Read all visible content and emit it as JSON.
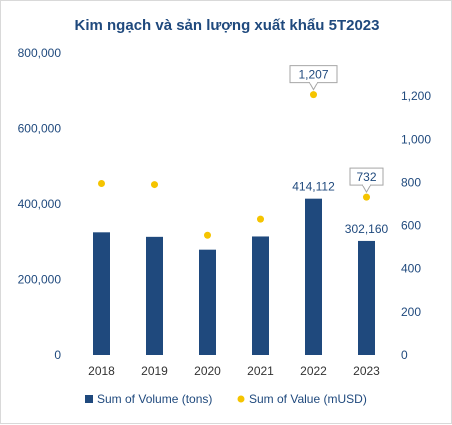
{
  "chart_data": {
    "type": "bar",
    "title": "Kim ngạch và sản lượng xuất khẩu 5T2023",
    "categories": [
      "2018",
      "2019",
      "2020",
      "2021",
      "2022",
      "2023"
    ],
    "series": [
      {
        "name": "Sum of Volume (tons)",
        "type": "bar",
        "axis": "left",
        "color": "#1f497d",
        "values": [
          325000,
          313000,
          279000,
          314000,
          414112,
          302160
        ],
        "labels": [
          "",
          "",
          "",
          "",
          "414,112",
          "302,160"
        ]
      },
      {
        "name": "Sum of Value (mUSD)",
        "type": "scatter",
        "axis": "right",
        "color": "#f5c400",
        "values": [
          795,
          790,
          555,
          630,
          1207,
          732
        ],
        "labels": [
          "",
          "",
          "",
          "",
          "1,207",
          "732"
        ]
      }
    ],
    "left_axis": {
      "min": 0,
      "max": 800000,
      "ticks": [
        0,
        200000,
        400000,
        600000,
        800000
      ],
      "tick_labels": [
        "0",
        "200,000",
        "400,000",
        "600,000",
        "800,000"
      ]
    },
    "right_axis": {
      "min": 0,
      "max": 1400,
      "ticks": [
        0,
        200,
        400,
        600,
        800,
        1000,
        1200
      ],
      "tick_labels": [
        "0",
        "200",
        "400",
        "600",
        "800",
        "1,000",
        "1,200"
      ]
    },
    "grid": false,
    "legend_position": "bottom"
  }
}
